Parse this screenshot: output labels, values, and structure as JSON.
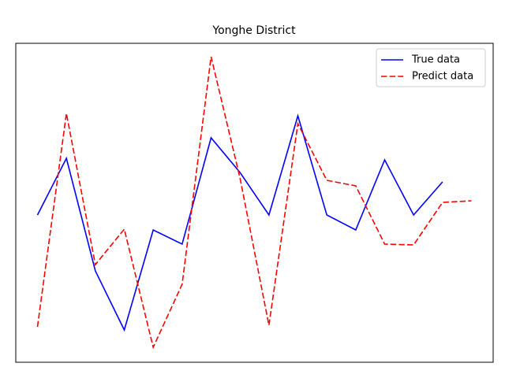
{
  "chart_data": {
    "type": "line",
    "title": "Yonghe District",
    "x": [
      0,
      1,
      2,
      3,
      4,
      5,
      6,
      7,
      8,
      9,
      10,
      11,
      12,
      13,
      14,
      15
    ],
    "xlim": [
      -0.75,
      15.75
    ],
    "ylim": [
      20,
      425
    ],
    "legend": "upper right",
    "series": [
      {
        "name": "True data",
        "color": "#0000ff",
        "dash": "solid",
        "values": [
          207,
          279,
          136,
          61,
          188,
          170,
          305,
          261,
          207,
          333,
          207,
          188,
          277,
          207,
          249,
          null
        ]
      },
      {
        "name": "Predict data",
        "color": "#ff0000",
        "dash": "dashed",
        "values": [
          65,
          336,
          144,
          189,
          39,
          119,
          408,
          254,
          67,
          323,
          251,
          244,
          170,
          169,
          223,
          225
        ]
      }
    ]
  }
}
